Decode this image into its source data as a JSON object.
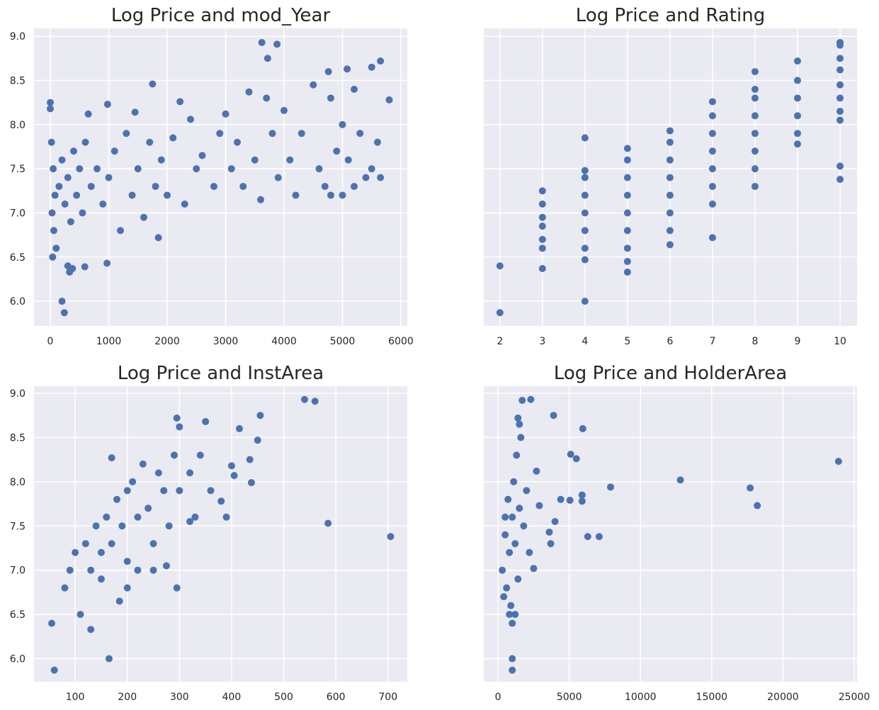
{
  "chart_data": [
    {
      "type": "scatter",
      "title": "Log Price and mod_Year",
      "color": "#4c72b0",
      "grid": true,
      "x": [
        0,
        0,
        20,
        50,
        80,
        30,
        60,
        100,
        40,
        150,
        200,
        250,
        300,
        350,
        400,
        450,
        500,
        550,
        600,
        650,
        700,
        800,
        900,
        980,
        1000,
        1100,
        1200,
        1300,
        1400,
        1450,
        1500,
        1600,
        1700,
        1800,
        1850,
        1900,
        2000,
        2100,
        2300,
        2400,
        2500,
        2600,
        2800,
        2900,
        3000,
        3100,
        3200,
        3300,
        3400,
        3500,
        3600,
        3700,
        3800,
        3900,
        4000,
        4100,
        4200,
        4300,
        4500,
        4600,
        4700,
        4800,
        4800,
        4900,
        5000,
        5000,
        5100,
        5200,
        5200,
        5300,
        5400,
        5500,
        5500,
        5600,
        5650,
        200,
        240,
        3620,
        3880,
        3720,
        1750,
        2220,
        5800,
        5650,
        4760,
        5080,
        970,
        590,
        300,
        380,
        330
      ],
      "y": [
        8.25,
        8.18,
        7.8,
        7.5,
        7.2,
        7.0,
        6.8,
        6.6,
        6.5,
        7.3,
        7.6,
        7.1,
        7.4,
        6.9,
        7.7,
        7.2,
        7.5,
        7.0,
        7.8,
        8.12,
        7.3,
        7.5,
        7.1,
        8.23,
        7.4,
        7.7,
        6.8,
        7.9,
        7.2,
        8.14,
        7.5,
        6.95,
        7.8,
        7.3,
        6.72,
        7.6,
        7.2,
        7.85,
        7.1,
        8.06,
        7.5,
        7.65,
        7.3,
        7.9,
        8.12,
        7.5,
        7.8,
        7.3,
        8.37,
        7.6,
        7.15,
        8.3,
        7.9,
        7.4,
        8.16,
        7.6,
        7.2,
        7.9,
        8.45,
        7.5,
        7.3,
        8.3,
        7.2,
        7.7,
        8.0,
        7.2,
        7.6,
        8.4,
        7.3,
        7.9,
        7.4,
        8.65,
        7.5,
        7.8,
        7.4,
        6.0,
        5.87,
        8.93,
        8.91,
        8.75,
        8.46,
        8.26,
        8.28,
        8.72,
        8.6,
        8.63,
        6.43,
        6.39,
        6.4,
        6.37,
        6.33
      ],
      "xlim": [
        -279,
        6109
      ],
      "ylim": [
        5.72,
        9.09
      ],
      "xticks": [
        0,
        1000,
        2000,
        3000,
        4000,
        5000,
        6000
      ],
      "yticks": [
        {
          "value": 6,
          "label": "6.0"
        },
        {
          "value": 6.5,
          "label": "6.5"
        },
        {
          "value": 7,
          "label": "7.0"
        },
        {
          "value": 7.5,
          "label": "7.5"
        },
        {
          "value": 8,
          "label": "8.0"
        },
        {
          "value": 8.5,
          "label": "8.5"
        },
        {
          "value": 9,
          "label": "9.0"
        }
      ]
    },
    {
      "type": "scatter",
      "title": "Log Price and Rating",
      "color": "#4c72b0",
      "grid": true,
      "x": [
        2,
        2,
        3,
        3,
        3,
        3,
        3,
        3,
        3,
        4,
        4,
        4,
        4,
        4,
        4,
        4,
        4,
        4,
        5,
        5,
        5,
        5,
        5,
        5,
        5,
        5,
        5,
        6,
        6,
        6,
        6,
        6,
        6,
        6,
        6,
        7,
        7,
        7,
        7,
        7,
        7,
        7,
        7,
        8,
        8,
        8,
        8,
        8,
        8,
        8,
        8,
        9,
        9,
        9,
        9,
        9,
        9,
        10,
        10,
        10,
        10,
        10,
        10,
        10,
        10,
        10,
        10
      ],
      "y": [
        6.4,
        5.87,
        6.37,
        6.6,
        6.7,
        6.85,
        6.95,
        7.1,
        7.25,
        6.0,
        6.47,
        6.6,
        6.8,
        7.0,
        7.2,
        7.4,
        7.48,
        7.85,
        6.33,
        6.45,
        6.6,
        6.8,
        7.0,
        7.2,
        7.4,
        7.6,
        7.73,
        6.64,
        6.8,
        7.0,
        7.2,
        7.4,
        7.6,
        7.8,
        7.93,
        6.72,
        7.1,
        7.3,
        7.5,
        7.7,
        7.9,
        8.1,
        8.26,
        7.3,
        7.5,
        7.7,
        7.9,
        8.1,
        8.3,
        8.4,
        8.6,
        7.78,
        7.9,
        8.1,
        8.3,
        8.5,
        8.72,
        7.38,
        7.53,
        8.05,
        8.15,
        8.3,
        8.45,
        8.62,
        8.75,
        8.9,
        8.93
      ],
      "xlim": [
        1.62,
        10.4
      ],
      "ylim": [
        5.72,
        9.09
      ],
      "xticks": [
        2,
        3,
        4,
        5,
        6,
        7,
        8,
        9,
        10
      ],
      "yticks": [
        6,
        6.5,
        7,
        7.5,
        8,
        8.5,
        9
      ]
    },
    {
      "type": "scatter",
      "title": "Log Price and InstArea",
      "color": "#4c72b0",
      "grid": true,
      "x": [
        55,
        60,
        165,
        585,
        705,
        540,
        560,
        455,
        415,
        450,
        435,
        438,
        400,
        405,
        380,
        390,
        295,
        300,
        350,
        170,
        80,
        90,
        100,
        110,
        120,
        130,
        130,
        140,
        150,
        150,
        160,
        170,
        180,
        190,
        200,
        200,
        210,
        220,
        230,
        240,
        250,
        260,
        270,
        280,
        290,
        300,
        320,
        330,
        340,
        360,
        200,
        220,
        250,
        295,
        185,
        320,
        275
      ],
      "y": [
        6.4,
        5.87,
        6.0,
        7.53,
        7.38,
        8.93,
        8.91,
        8.75,
        8.6,
        8.47,
        8.25,
        7.99,
        8.18,
        8.07,
        7.78,
        7.6,
        8.72,
        8.62,
        8.68,
        8.27,
        6.8,
        7.0,
        7.2,
        6.5,
        7.3,
        6.33,
        7.0,
        7.5,
        7.2,
        6.9,
        7.6,
        7.3,
        7.8,
        7.5,
        7.9,
        7.1,
        8.0,
        7.6,
        8.2,
        7.7,
        7.3,
        8.1,
        7.9,
        7.5,
        8.3,
        7.9,
        8.1,
        7.6,
        8.3,
        7.9,
        6.8,
        7.0,
        7.0,
        6.8,
        6.65,
        7.55,
        7.05
      ],
      "xlim": [
        21,
        737
      ],
      "ylim": [
        5.74,
        9.08
      ],
      "xticks": [
        100,
        200,
        300,
        400,
        500,
        600,
        700
      ],
      "yticks": [
        {
          "value": 6,
          "label": "6.0"
        },
        {
          "value": 6.5,
          "label": "6.5"
        },
        {
          "value": 7,
          "label": "7.0"
        },
        {
          "value": 7.5,
          "label": "7.5"
        },
        {
          "value": 8,
          "label": "8.0"
        },
        {
          "value": 8.5,
          "label": "8.5"
        },
        {
          "value": 9,
          "label": "9.0"
        }
      ]
    },
    {
      "type": "scatter",
      "title": "Log Price and HolderArea",
      "color": "#4c72b0",
      "grid": true,
      "x": [
        23900,
        17700,
        18200,
        12800,
        7900,
        7100,
        6300,
        5950,
        5900,
        5900,
        5500,
        5100,
        5050,
        4400,
        3900,
        4000,
        3700,
        3600,
        2900,
        2700,
        2500,
        1700,
        2300,
        1000,
        1000,
        300,
        500,
        600,
        700,
        800,
        900,
        1000,
        1100,
        1200,
        1300,
        1400,
        1500,
        1600,
        1800,
        2000,
        2200,
        1000,
        800,
        1200,
        1500,
        1400,
        500,
        400
      ],
      "y": [
        8.23,
        7.93,
        7.73,
        8.02,
        7.94,
        7.38,
        7.38,
        8.6,
        7.85,
        7.78,
        8.26,
        8.31,
        7.79,
        7.8,
        8.75,
        7.55,
        7.3,
        7.43,
        7.73,
        8.12,
        7.02,
        8.92,
        8.93,
        6.0,
        5.87,
        7.0,
        7.4,
        6.8,
        7.8,
        7.2,
        6.6,
        7.6,
        8.0,
        7.3,
        8.3,
        6.9,
        7.7,
        8.5,
        7.5,
        7.9,
        7.2,
        6.4,
        6.5,
        6.5,
        8.65,
        8.72,
        7.6,
        6.7
      ],
      "xlim": [
        -1000,
        25200
      ],
      "ylim": [
        5.74,
        9.08
      ],
      "xticks": [
        0,
        5000,
        10000,
        15000,
        20000,
        25000
      ],
      "yticks": [
        6,
        6.5,
        7,
        7.5,
        8,
        8.5,
        9
      ]
    }
  ]
}
